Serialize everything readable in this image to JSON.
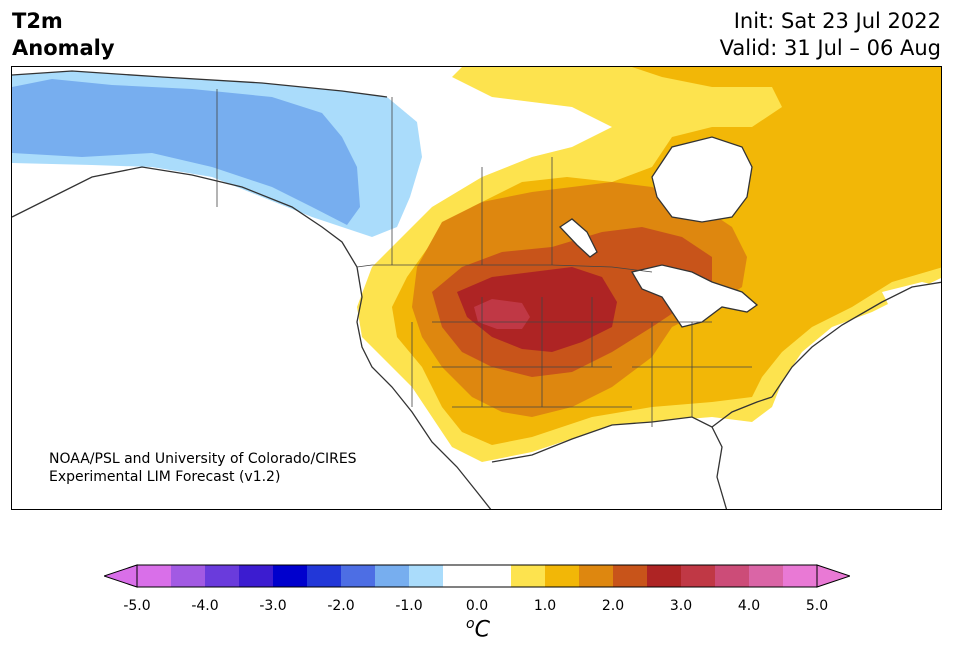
{
  "header": {
    "title_line1": "T2m",
    "title_line2": "Anomaly",
    "init": "Init: Sat 23 Jul 2022",
    "valid": "Valid: 31 Jul – 06 Aug"
  },
  "credit": {
    "line1": "NOAA/PSL and University of Colorado/CIRES",
    "line2": "Experimental LIM Forecast (v1.2)"
  },
  "colorbar": {
    "unit_base": "C",
    "unit_sup": "o",
    "colors": [
      "#d96fe9",
      "#a25ae3",
      "#6a3bdc",
      "#3c1cd0",
      "#0000cd",
      "#2237d8",
      "#4d6ee4",
      "#77aeef",
      "#aadcfb",
      "#ffffff",
      "#ffffff",
      "#fde34e",
      "#f2b707",
      "#de870f",
      "#c8541a",
      "#ae2424",
      "#c03845",
      "#cc4c78",
      "#da65a6",
      "#e979d5"
    ],
    "ticks": [
      "-5.0",
      "-4.0",
      "-3.0",
      "-2.0",
      "-1.0",
      "0.0",
      "1.0",
      "2.0",
      "3.0",
      "4.0",
      "5.0"
    ]
  },
  "map": {
    "legend_colors": {
      "cool1": "#aadcfb",
      "cool2": "#77aeef",
      "warm1": "#fde34e",
      "warm2": "#f2b707",
      "warm3": "#de870f",
      "warm4": "#c8541a",
      "warm5": "#ae2424",
      "warm6": "#c03845"
    }
  }
}
